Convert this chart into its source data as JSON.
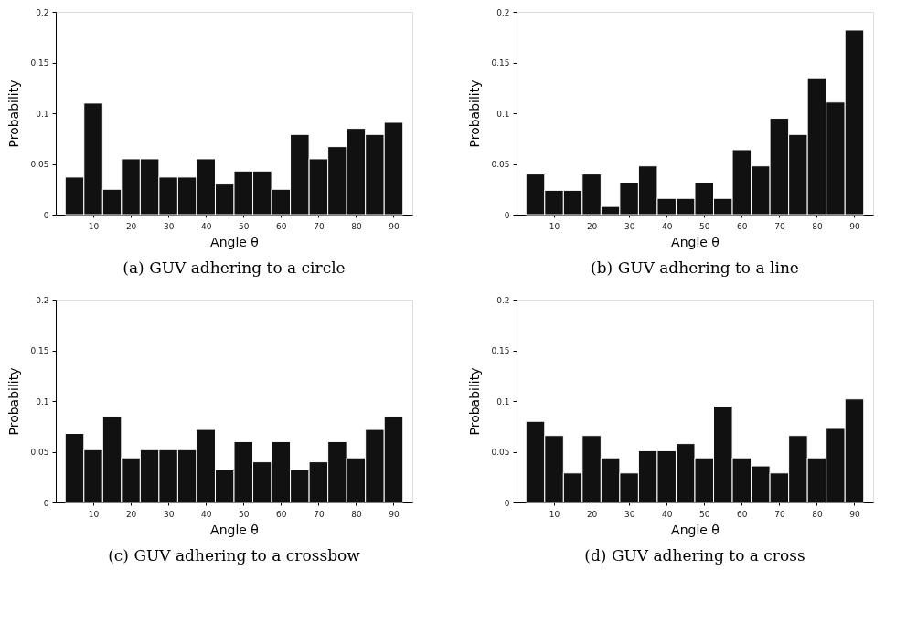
{
  "chart_data": [
    {
      "type": "histogram",
      "xlabel": "Angle θ",
      "ylabel": "Probability",
      "annotations": [
        "(a) GUV adhering to a circle"
      ],
      "color": "#111111",
      "grid": false,
      "legend": false,
      "bins": [
        2.5,
        7.5,
        12.5,
        17.5,
        22.5,
        27.5,
        32.5,
        37.5,
        42.5,
        47.5,
        52.5,
        57.5,
        62.5,
        67.5,
        72.5,
        77.5,
        82.5,
        87.5,
        92.5
      ],
      "values": [
        0.037,
        0.11,
        0.025,
        0.055,
        0.055,
        0.037,
        0.037,
        0.055,
        0.031,
        0.043,
        0.043,
        0.025,
        0.079,
        0.055,
        0.067,
        0.085,
        0.079,
        0.091
      ],
      "xlim": [
        0,
        95
      ],
      "xticks": [
        10,
        20,
        30,
        40,
        50,
        60,
        70,
        80,
        90
      ],
      "ylim": [
        0,
        0.2
      ],
      "yticks": [
        0,
        0.05,
        0.1,
        0.15,
        0.2
      ]
    },
    {
      "type": "histogram",
      "xlabel": "Angle θ",
      "ylabel": "Probability",
      "annotations": [
        "(b) GUV adhering to a line"
      ],
      "color": "#111111",
      "grid": false,
      "legend": false,
      "bins": [
        2.5,
        7.5,
        12.5,
        17.5,
        22.5,
        27.5,
        32.5,
        37.5,
        42.5,
        47.5,
        52.5,
        57.5,
        62.5,
        67.5,
        72.5,
        77.5,
        82.5,
        87.5,
        92.5
      ],
      "values": [
        0.04,
        0.024,
        0.024,
        0.04,
        0.008,
        0.032,
        0.048,
        0.016,
        0.016,
        0.032,
        0.016,
        0.064,
        0.048,
        0.095,
        0.079,
        0.135,
        0.111,
        0.182
      ],
      "xlim": [
        0,
        95
      ],
      "xticks": [
        10,
        20,
        30,
        40,
        50,
        60,
        70,
        80,
        90
      ],
      "ylim": [
        0,
        0.2
      ],
      "yticks": [
        0,
        0.05,
        0.1,
        0.15,
        0.2
      ]
    },
    {
      "type": "histogram",
      "xlabel": "Angle θ",
      "ylabel": "Probability",
      "annotations": [
        "(c) GUV adhering to a crossbow"
      ],
      "color": "#111111",
      "grid": false,
      "legend": false,
      "bins": [
        2.5,
        7.5,
        12.5,
        17.5,
        22.5,
        27.5,
        32.5,
        37.5,
        42.5,
        47.5,
        52.5,
        57.5,
        62.5,
        67.5,
        72.5,
        77.5,
        82.5,
        87.5,
        92.5
      ],
      "values": [
        0.068,
        0.052,
        0.085,
        0.044,
        0.052,
        0.052,
        0.052,
        0.072,
        0.032,
        0.06,
        0.04,
        0.06,
        0.032,
        0.04,
        0.06,
        0.044,
        0.072,
        0.085
      ],
      "xlim": [
        0,
        95
      ],
      "xticks": [
        10,
        20,
        30,
        40,
        50,
        60,
        70,
        80,
        90
      ],
      "ylim": [
        0,
        0.2
      ],
      "yticks": [
        0,
        0.05,
        0.1,
        0.15,
        0.2
      ]
    },
    {
      "type": "histogram",
      "xlabel": "Angle θ",
      "ylabel": "Probability",
      "annotations": [
        "(d) GUV adhering to a cross"
      ],
      "color": "#111111",
      "grid": false,
      "legend": false,
      "bins": [
        2.5,
        7.5,
        12.5,
        17.5,
        22.5,
        27.5,
        32.5,
        37.5,
        42.5,
        47.5,
        52.5,
        57.5,
        62.5,
        67.5,
        72.5,
        77.5,
        82.5,
        87.5,
        92.5
      ],
      "values": [
        0.08,
        0.066,
        0.029,
        0.066,
        0.044,
        0.029,
        0.051,
        0.051,
        0.058,
        0.044,
        0.095,
        0.044,
        0.036,
        0.029,
        0.066,
        0.044,
        0.073,
        0.102
      ],
      "xlim": [
        0,
        95
      ],
      "xticks": [
        10,
        20,
        30,
        40,
        50,
        60,
        70,
        80,
        90
      ],
      "ylim": [
        0,
        0.2
      ],
      "yticks": [
        0,
        0.05,
        0.1,
        0.15,
        0.2
      ]
    }
  ]
}
